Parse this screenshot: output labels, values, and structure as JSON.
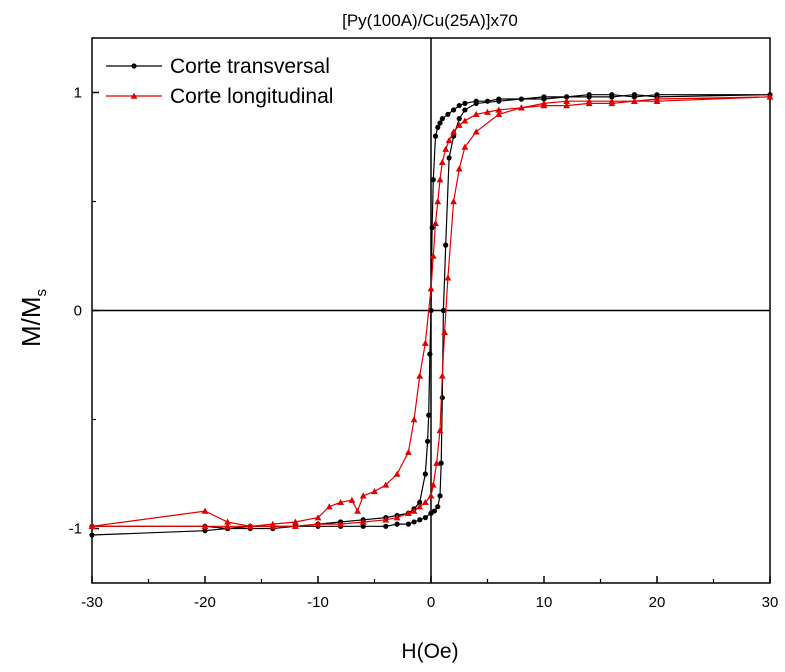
{
  "chart_data": {
    "type": "line",
    "title": "[Py(100A)/Cu(25A)]x70",
    "xlabel": "H(Oe)",
    "ylabel": "M/M",
    "ylabel_subscript": "s",
    "xlim": [
      -30,
      30
    ],
    "ylim": [
      -1.25,
      1.25
    ],
    "xticks": [
      -30,
      -20,
      -10,
      0,
      10,
      20,
      30
    ],
    "yticks": [
      -1,
      0,
      1
    ],
    "grid": false,
    "legend_position": "top-left",
    "zero_lines": true,
    "series": [
      {
        "name": "Corte transversal",
        "color": "#000000",
        "marker": "circle",
        "x": [
          -30,
          -20,
          -18,
          -16,
          -14,
          -12,
          -10,
          -8,
          -6,
          -4,
          -3,
          -2,
          -1.5,
          -1,
          -0.5,
          -0.3,
          -0.2,
          -0.1,
          0,
          0.1,
          0.2,
          0.4,
          0.6,
          0.8,
          1.0,
          1.5,
          2,
          2.5,
          3,
          4,
          5,
          6,
          8,
          10,
          12,
          14,
          16,
          18,
          20,
          30,
          20,
          18,
          16,
          14,
          12,
          10,
          8,
          6,
          4,
          3,
          2.5,
          2,
          1.6,
          1.3,
          1.1,
          1.0,
          0.9,
          0.8,
          0.6,
          0.3,
          0,
          -0.5,
          -1,
          -1.5,
          -2,
          -3,
          -4,
          -6,
          -8,
          -10,
          -12,
          -14,
          -16,
          -18,
          -20,
          -30
        ],
        "y": [
          -1.03,
          -1.01,
          -1.0,
          -1.0,
          -1.0,
          -0.99,
          -0.98,
          -0.97,
          -0.96,
          -0.95,
          -0.94,
          -0.93,
          -0.91,
          -0.88,
          -0.75,
          -0.6,
          -0.48,
          -0.2,
          0.0,
          0.38,
          0.6,
          0.8,
          0.84,
          0.86,
          0.88,
          0.9,
          0.92,
          0.94,
          0.95,
          0.96,
          0.96,
          0.97,
          0.97,
          0.98,
          0.98,
          0.99,
          0.99,
          0.98,
          0.99,
          0.99,
          0.98,
          0.99,
          0.98,
          0.98,
          0.98,
          0.97,
          0.97,
          0.96,
          0.95,
          0.92,
          0.88,
          0.8,
          0.7,
          0.3,
          0.0,
          -0.4,
          -0.7,
          -0.85,
          -0.9,
          -0.92,
          -0.93,
          -0.95,
          -0.96,
          -0.97,
          -0.98,
          -0.98,
          -0.99,
          -0.99,
          -0.99,
          -0.99,
          -0.99,
          -0.99,
          -0.99,
          -1.0,
          -0.99,
          -0.99
        ]
      },
      {
        "name": "Corte longitudinal",
        "color": "#e00000",
        "marker": "triangle",
        "x": [
          -30,
          -20,
          -18,
          -16,
          -14,
          -12,
          -10,
          -9,
          -8,
          -7,
          -6.5,
          -6,
          -5,
          -4,
          -3,
          -2,
          -1.5,
          -1,
          -0.5,
          0,
          0.2,
          0.4,
          0.6,
          0.8,
          1.0,
          1.3,
          1.6,
          2,
          2.5,
          3,
          4,
          5,
          6,
          8,
          10,
          12,
          14,
          16,
          18,
          20,
          30,
          20,
          18,
          16,
          14,
          12,
          10,
          8,
          6,
          4,
          3,
          2.5,
          2,
          1.5,
          1.2,
          1.0,
          0.8,
          0.5,
          0.2,
          0,
          -0.5,
          -1,
          -1.5,
          -2,
          -3,
          -4,
          -6,
          -8,
          -10,
          -12,
          -14,
          -16,
          -18,
          -20,
          -30
        ],
        "y": [
          -0.99,
          -0.92,
          -0.97,
          -0.99,
          -0.98,
          -0.97,
          -0.95,
          -0.9,
          -0.88,
          -0.87,
          -0.92,
          -0.85,
          -0.83,
          -0.8,
          -0.75,
          -0.65,
          -0.5,
          -0.3,
          -0.15,
          0.1,
          0.25,
          0.4,
          0.5,
          0.6,
          0.68,
          0.74,
          0.78,
          0.82,
          0.85,
          0.87,
          0.9,
          0.91,
          0.92,
          0.93,
          0.94,
          0.94,
          0.95,
          0.95,
          0.96,
          0.96,
          0.98,
          0.97,
          0.96,
          0.96,
          0.96,
          0.96,
          0.95,
          0.93,
          0.9,
          0.82,
          0.75,
          0.65,
          0.5,
          0.15,
          -0.1,
          -0.3,
          -0.55,
          -0.7,
          -0.8,
          -0.85,
          -0.88,
          -0.9,
          -0.92,
          -0.93,
          -0.95,
          -0.96,
          -0.97,
          -0.98,
          -0.98,
          -0.99,
          -0.99,
          -0.99,
          -0.99,
          -0.99,
          -0.99
        ]
      }
    ]
  }
}
